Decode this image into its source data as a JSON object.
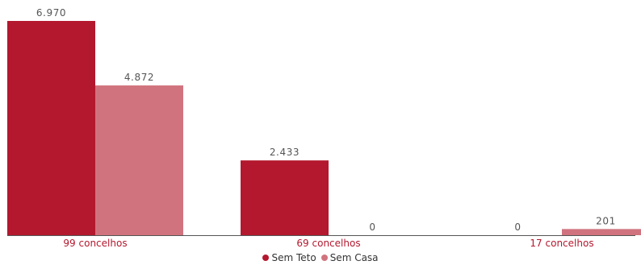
{
  "colors": {
    "sem_teto": "#b3182e",
    "sem_casa": "#d1737e",
    "axis": "#555555"
  },
  "chart_data": {
    "type": "bar",
    "categories": [
      "99 concelhos",
      "69 concelhos",
      "17 concelhos"
    ],
    "series": [
      {
        "name": "Sem Teto",
        "values": [
          6970,
          2433,
          0
        ],
        "labels": [
          "6.970",
          "2.433",
          "0"
        ]
      },
      {
        "name": "Sem Casa",
        "values": [
          4872,
          0,
          201
        ],
        "labels": [
          "4.872",
          "0",
          "201"
        ]
      }
    ],
    "ylim": [
      0,
      6970
    ],
    "grid": false,
    "legend_position": "bottom-center",
    "title": "",
    "xlabel": "",
    "ylabel": ""
  },
  "legend": {
    "items": [
      {
        "label": "Sem Teto"
      },
      {
        "label": "Sem Casa"
      }
    ]
  }
}
